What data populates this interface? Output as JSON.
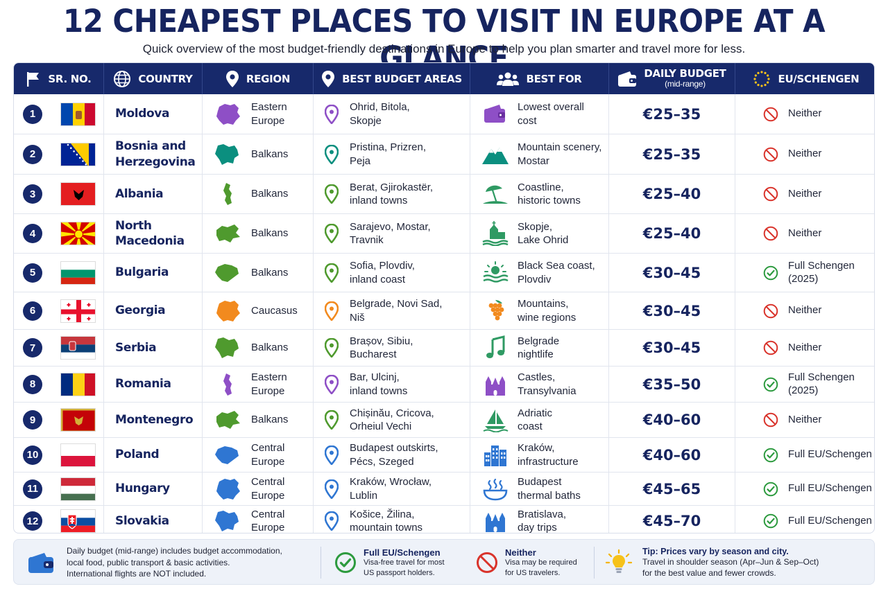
{
  "title": "12 CHEAPEST PLACES TO VISIT IN EUROPE AT A GLANCE",
  "subtitle": "Quick overview of the most budget-friendly destinations in Europe to help you plan smarter and travel more for less.",
  "headers": {
    "srno": "SR. NO.",
    "country": "COUNTRY",
    "region": "REGION",
    "areas": "BEST BUDGET AREAS",
    "bestfor": "BEST FOR",
    "budget": "DAILY BUDGET",
    "budget_sub": "(mid-range)",
    "eu": "EU/SCHENGEN"
  },
  "colors": {
    "navy": "#17296b",
    "purple": "#8e4fc6",
    "teal": "#0b8f7f",
    "green": "#4f9a2e",
    "orange": "#f28a1e",
    "blue": "#2f76d2",
    "no": "#d9332b",
    "yes": "#2c9a3e"
  },
  "rows": [
    {
      "n": "1",
      "country": [
        "Moldova"
      ],
      "flag": "moldova",
      "region": [
        "Eastern",
        "Europe"
      ],
      "region_color": "purple",
      "areas": [
        "Ohrid, Bitola,",
        "Skopje"
      ],
      "pin_color": "purple",
      "bestfor": [
        "Lowest overall",
        "cost"
      ],
      "icon": "wallet-icon",
      "budget": "€25–35",
      "eu_status": "no",
      "eu": [
        "Neither"
      ]
    },
    {
      "n": "2",
      "country": [
        "Bosnia and",
        "Herzegovina"
      ],
      "flag": "bosnia",
      "region": [
        "Balkans"
      ],
      "region_color": "teal",
      "areas": [
        "Pristina, Prizren,",
        "Peja"
      ],
      "pin_color": "teal",
      "bestfor": [
        "Mountain scenery,",
        "Mostar"
      ],
      "icon": "mountain-icon",
      "budget": "€25–35",
      "eu_status": "no",
      "eu": [
        "Neither"
      ]
    },
    {
      "n": "3",
      "country": [
        "Albania"
      ],
      "flag": "albania",
      "region": [
        "Balkans"
      ],
      "region_color": "green",
      "areas": [
        "Berat, Gjirokastër,",
        "inland towns"
      ],
      "pin_color": "green",
      "bestfor": [
        "Coastline,",
        "historic towns"
      ],
      "icon": "beach-umbrella-icon",
      "budget": "€25–40",
      "eu_status": "no",
      "eu": [
        "Neither"
      ]
    },
    {
      "n": "4",
      "country": [
        "North",
        "Macedonia"
      ],
      "flag": "macedonia",
      "region": [
        "Balkans"
      ],
      "region_color": "green",
      "areas": [
        "Sarajevo, Mostar,",
        "Travnik"
      ],
      "pin_color": "green",
      "bestfor": [
        "Skopje,",
        "Lake Ohrid"
      ],
      "icon": "church-lake-icon",
      "budget": "€25–40",
      "eu_status": "no",
      "eu": [
        "Neither"
      ]
    },
    {
      "n": "5",
      "country": [
        "Bulgaria"
      ],
      "flag": "bulgaria",
      "region": [
        "Balkans"
      ],
      "region_color": "green",
      "areas": [
        "Sofia, Plovdiv,",
        "inland coast"
      ],
      "pin_color": "green",
      "bestfor": [
        "Black Sea coast,",
        "Plovdiv"
      ],
      "icon": "sunset-sea-icon",
      "budget": "€30–45",
      "eu_status": "yes",
      "eu": [
        "Full Schengen",
        "(2025)"
      ]
    },
    {
      "n": "6",
      "country": [
        "Georgia"
      ],
      "flag": "georgia",
      "region": [
        "Caucasus"
      ],
      "region_color": "orange",
      "areas": [
        "Belgrade, Novi Sad,",
        "Niš"
      ],
      "pin_color": "orange",
      "bestfor": [
        "Mountains,",
        "wine regions"
      ],
      "icon": "grapes-icon",
      "budget": "€30–45",
      "eu_status": "no",
      "eu": [
        "Neither"
      ]
    },
    {
      "n": "7",
      "country": [
        "Serbia"
      ],
      "flag": "serbia",
      "region": [
        "Balkans"
      ],
      "region_color": "green",
      "areas": [
        "Brașov, Sibiu,",
        "Bucharest"
      ],
      "pin_color": "green",
      "bestfor": [
        "Belgrade",
        "nightlife"
      ],
      "icon": "music-note-icon",
      "budget": "€30–45",
      "eu_status": "no",
      "eu": [
        "Neither"
      ]
    },
    {
      "n": "8",
      "country": [
        "Romania"
      ],
      "flag": "romania",
      "region": [
        "Eastern",
        "Europe"
      ],
      "region_color": "purple",
      "areas": [
        "Bar, Ulcinj,",
        "inland towns"
      ],
      "pin_color": "purple",
      "bestfor": [
        "Castles,",
        "Transylvania"
      ],
      "icon": "castle-icon",
      "budget": "€35–50",
      "eu_status": "yes",
      "eu": [
        "Full Schengen",
        "(2025)"
      ]
    },
    {
      "n": "9",
      "country": [
        "Montenegro"
      ],
      "flag": "montenegro",
      "region": [
        "Balkans"
      ],
      "region_color": "green",
      "areas": [
        "Chișinău, Cricova,",
        "Orheiul Vechi"
      ],
      "pin_color": "green",
      "bestfor": [
        "Adriatic",
        "coast"
      ],
      "icon": "sailboat-icon",
      "budget": "€40–60",
      "eu_status": "no",
      "eu": [
        "Neither"
      ]
    },
    {
      "n": "10",
      "country": [
        "Poland"
      ],
      "flag": "poland",
      "region": [
        "Central",
        "Europe"
      ],
      "region_color": "blue",
      "areas": [
        "Budapest outskirts,",
        "Pécs, Szeged"
      ],
      "pin_color": "blue",
      "bestfor": [
        "Kraków,",
        "infrastructure"
      ],
      "icon": "city-buildings-icon",
      "budget": "€40–60",
      "eu_status": "yes",
      "eu": [
        "Full EU/Schengen"
      ]
    },
    {
      "n": "11",
      "country": [
        "Hungary"
      ],
      "flag": "hungary",
      "region": [
        "Central",
        "Europe"
      ],
      "region_color": "blue",
      "areas": [
        "Kraków, Wrocław,",
        "Lublin"
      ],
      "pin_color": "blue",
      "bestfor": [
        "Budapest",
        "thermal baths"
      ],
      "icon": "thermal-bath-icon",
      "budget": "€45–65",
      "eu_status": "yes",
      "eu": [
        "Full EU/Schengen"
      ]
    },
    {
      "n": "12",
      "country": [
        "Slovakia"
      ],
      "flag": "slovakia",
      "region": [
        "Central",
        "Europe"
      ],
      "region_color": "blue",
      "areas": [
        "Košice, Žilina,",
        "mountain towns"
      ],
      "pin_color": "blue",
      "bestfor": [
        "Bratislava,",
        "day trips"
      ],
      "icon": "castle-icon",
      "budget": "€45–70",
      "eu_status": "yes",
      "eu": [
        "Full EU/Schengen"
      ]
    }
  ],
  "footer": {
    "budget_note": [
      "Daily budget (mid-range) includes budget accommodation,",
      "local food, public transport & basic activities.",
      "International flights are NOT included."
    ],
    "yes_title": "Full EU/Schengen",
    "yes_text": [
      "Visa-free travel for most",
      "US passport holders."
    ],
    "no_title": "Neither",
    "no_text": [
      "Visa may be required",
      "for US travelers."
    ],
    "tip_title": "Tip: Prices vary by season and city.",
    "tip_text": [
      "Travel in shoulder season (Apr–Jun & Sep–Oct)",
      "for the best value and fewer crowds."
    ]
  }
}
